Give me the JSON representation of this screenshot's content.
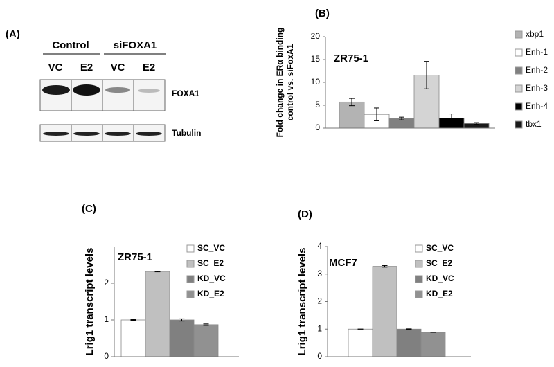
{
  "blot": {
    "panel_label": "(A)",
    "groups": [
      {
        "label": "Control",
        "lanes": [
          "VC",
          "E2"
        ]
      },
      {
        "label": "siFOXA1",
        "lanes": [
          "VC",
          "E2"
        ]
      }
    ],
    "bands": [
      "FOXA1",
      "Tubulin"
    ]
  },
  "chart_data": [
    {
      "type": "bar",
      "panel_label": "(B)",
      "annotation": "ZR75-1",
      "ylabel": [
        "Fold change in ERα binding",
        "control vs. siFoxA1"
      ],
      "ylim": [
        0,
        20
      ],
      "yticks": [
        0,
        5,
        10,
        15,
        20
      ],
      "legend": "right",
      "series": [
        {
          "name": "xbp1",
          "color": "#b3b3b3",
          "values": [
            5.7
          ],
          "errors": [
            0.8
          ]
        },
        {
          "name": "Enh-1",
          "color": "#ffffff",
          "values": [
            3.0
          ],
          "errors": [
            1.4
          ]
        },
        {
          "name": "Enh-2",
          "color": "#808080",
          "values": [
            2.1
          ],
          "errors": [
            0.3
          ]
        },
        {
          "name": "Enh-3",
          "color": "#d4d4d4",
          "values": [
            11.6
          ],
          "errors": [
            3.0
          ]
        },
        {
          "name": "Enh-4",
          "color": "#000000",
          "values": [
            2.2
          ],
          "errors": [
            0.9
          ]
        },
        {
          "name": "tbx1",
          "color": "#1a1a1a",
          "values": [
            1.0
          ],
          "errors": [
            0.2
          ]
        }
      ]
    },
    {
      "type": "bar",
      "panel_label": "(C)",
      "annotation": "ZR75-1",
      "ylabel": [
        "Lrig1 transcript levels"
      ],
      "ylim": [
        0,
        3
      ],
      "yticks": [
        0,
        1,
        2
      ],
      "legend": "upper right",
      "series": [
        {
          "name": "SC_VC",
          "color": "#ffffff",
          "values": [
            1.0
          ],
          "errors": [
            0.01
          ]
        },
        {
          "name": "SC_E2",
          "color": "#c0c0c0",
          "values": [
            2.32
          ],
          "errors": [
            0.01
          ]
        },
        {
          "name": "KD_VC",
          "color": "#808080",
          "values": [
            1.0
          ],
          "errors": [
            0.03
          ]
        },
        {
          "name": "KD_E2",
          "color": "#919191",
          "values": [
            0.87
          ],
          "errors": [
            0.02
          ]
        }
      ]
    },
    {
      "type": "bar",
      "panel_label": "(D)",
      "annotation": "MCF7",
      "ylabel": [
        "Lrig1 transcript levels"
      ],
      "ylim": [
        0,
        4
      ],
      "yticks": [
        0,
        1,
        2,
        3,
        4
      ],
      "legend": "upper right",
      "series": [
        {
          "name": "SC_VC",
          "color": "#ffffff",
          "values": [
            1.0
          ],
          "errors": [
            0.0
          ]
        },
        {
          "name": "SC_E2",
          "color": "#c0c0c0",
          "values": [
            3.28
          ],
          "errors": [
            0.03
          ]
        },
        {
          "name": "KD_VC",
          "color": "#808080",
          "values": [
            1.0
          ],
          "errors": [
            0.01
          ]
        },
        {
          "name": "KD_E2",
          "color": "#919191",
          "values": [
            0.88
          ],
          "errors": [
            0.0
          ]
        }
      ]
    }
  ]
}
